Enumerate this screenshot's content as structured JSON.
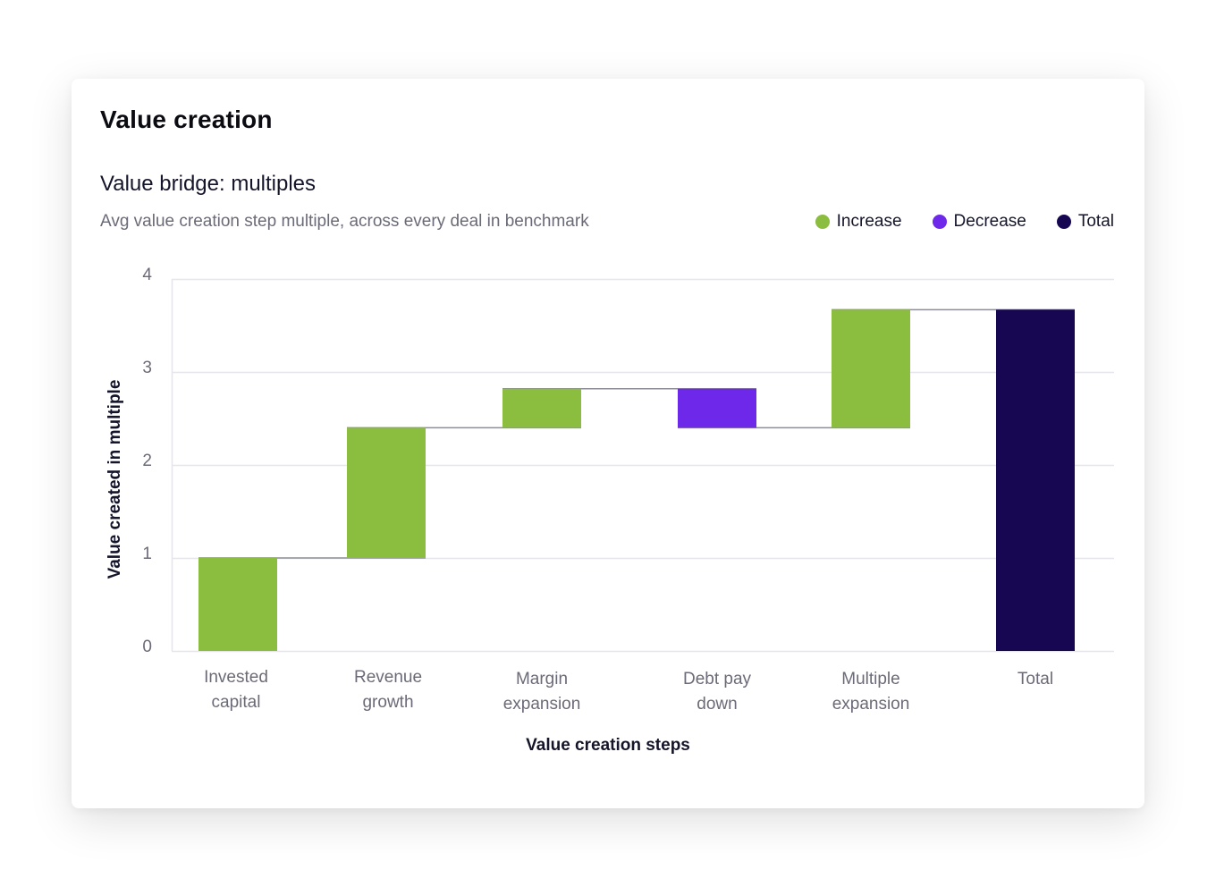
{
  "card": {
    "title": "Value creation"
  },
  "chart_data": {
    "type": "waterfall",
    "title": "Value bridge: multiples",
    "subtitle": "Avg value creation step multiple, across every deal in benchmark",
    "xlabel": "Value creation steps",
    "ylabel": "Value created in multiple",
    "ylim": [
      0,
      4
    ],
    "yticks": [
      0,
      1,
      2,
      3,
      4
    ],
    "grid": true,
    "legend_position": "top-right",
    "legend": [
      {
        "label": "Increase",
        "color": "#8bbd3f"
      },
      {
        "label": "Decrease",
        "color": "#6d28e9"
      },
      {
        "label": "Total",
        "color": "#170753"
      }
    ],
    "categories": [
      [
        "Invested",
        "capital"
      ],
      [
        "Revenue",
        "growth"
      ],
      [
        "Margin",
        "expansion"
      ],
      [
        "Debt pay",
        "down"
      ],
      [
        "Multiple",
        "expansion"
      ],
      [
        "Total"
      ]
    ],
    "steps": [
      {
        "start": 0,
        "end": 1.0,
        "kind": "increase"
      },
      {
        "start": 1.0,
        "end": 2.4,
        "kind": "increase"
      },
      {
        "start": 2.4,
        "end": 2.82,
        "kind": "increase"
      },
      {
        "start": 2.82,
        "end": 2.4,
        "kind": "decrease"
      },
      {
        "start": 2.4,
        "end": 3.67,
        "kind": "increase"
      },
      {
        "start": 0,
        "end": 3.67,
        "kind": "total"
      }
    ]
  }
}
